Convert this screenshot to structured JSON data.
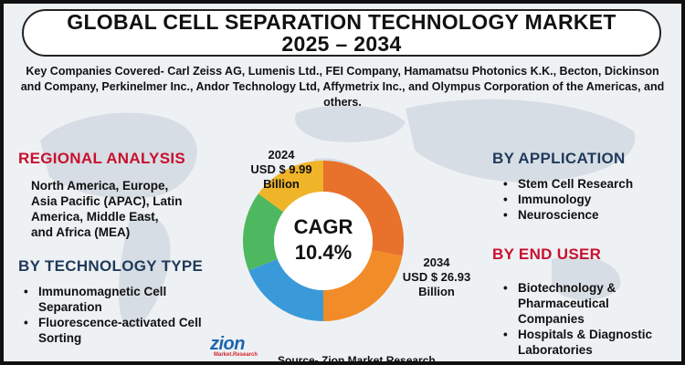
{
  "title": {
    "line1": "GLOBAL CELL SEPARATION TECHNOLOGY MARKET",
    "line2": "2025 – 2034"
  },
  "companies_text": "Key Companies Covered- Carl Zeiss AG, Lumenis Ltd., FEI Company, Hamamatsu Photonics K.K., Becton, Dickinson and Company, Perkinelmer Inc., Andor Technology Ltd, Affymetrix Inc., and Olympus Corporation of the Americas, and others.",
  "regional": {
    "heading": "REGIONAL ANALYSIS",
    "lines": [
      "North America, Europe,",
      "Asia Pacific (APAC), Latin",
      "America, Middle East,",
      "and Africa (MEA)"
    ]
  },
  "technology": {
    "heading": "BY TECHNOLOGY TYPE",
    "items": [
      {
        "line1": "Immunomagnetic Cell",
        "line2": "Separation"
      },
      {
        "line1": "Fluorescence-activated Cell",
        "line2": "Sorting"
      }
    ]
  },
  "application": {
    "heading": "BY APPLICATION",
    "items": [
      "Stem Cell Research",
      "Immunology",
      "Neuroscience"
    ]
  },
  "end_user": {
    "heading": "BY END USER",
    "items": [
      {
        "line1": "Biotechnology &",
        "line2": "Pharmaceutical",
        "line3": "Companies"
      },
      {
        "line1": "Hospitals & Diagnostic",
        "line2": "Laboratories",
        "line3": ""
      }
    ]
  },
  "chart_data": {
    "type": "pie",
    "segment_colors": [
      "#e8712b",
      "#f28c28",
      "#3a9ad9",
      "#4db85f",
      "#f0b429"
    ],
    "values": [
      28,
      22,
      19,
      16,
      15
    ],
    "center": {
      "label": "CAGR",
      "value": "10.4%"
    },
    "annotations": {
      "start": {
        "year": "2024",
        "value_line1": "USD $ 9.99",
        "value_line2": "Billion"
      },
      "end": {
        "year": "2034",
        "value_line1": "USD $ 26.93",
        "value_line2": "Billion"
      }
    }
  },
  "logo": {
    "word": "zion",
    "sub": "Market.Research"
  },
  "source": "Source- Zion Market Research",
  "colors": {
    "heading_red": "#c8102e",
    "heading_dark": "#1f3a5a",
    "logo_blue": "#1a66b0",
    "logo_red": "#d2232a"
  }
}
